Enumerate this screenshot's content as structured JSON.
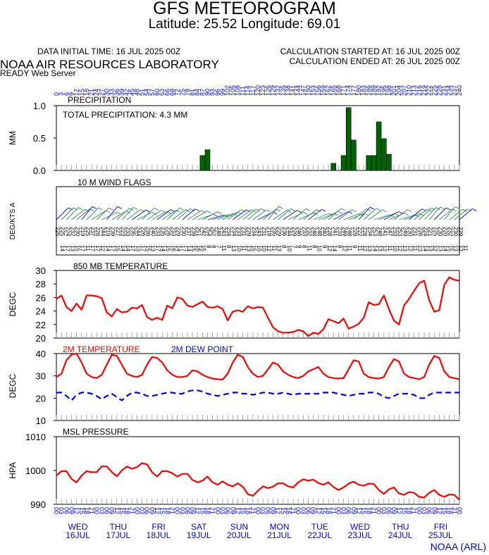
{
  "header": {
    "title": "GFS METEOROGRAM",
    "latlon": "Latitude: 25.52 Longitude:  69.01",
    "init_time": "DATA INITIAL TIME: 16 JUL 2025 00Z",
    "calc_started": "CALCULATION STARTED AT: 16 JUL 2025 00Z",
    "calc_ended": "CALCULATION ENDED AT: 26 JUL 2025 00Z",
    "lab": "NOAA AIR RESOURCES LABORATORY",
    "server": "READY Web Server",
    "credit": "NOAA (ARL)"
  },
  "colors": {
    "red": "#ff0000",
    "blue": "#0000ff",
    "green": "#006400",
    "wind": "#2e8b57"
  },
  "days": [
    {
      "name": "WED",
      "date": "16JUL"
    },
    {
      "name": "THU",
      "date": "17JUL"
    },
    {
      "name": "FRI",
      "date": "18JUL"
    },
    {
      "name": "SAT",
      "date": "19JUL"
    },
    {
      "name": "SUN",
      "date": "20JUL"
    },
    {
      "name": "MON",
      "date": "21JUL"
    },
    {
      "name": "TUE",
      "date": "22JUL"
    },
    {
      "name": "WED",
      "date": "23JUL"
    },
    {
      "name": "THU",
      "date": "24JUL"
    },
    {
      "name": "FRI",
      "date": "25JUL"
    }
  ],
  "chart_data": [
    {
      "type": "bar",
      "title": "PRECIPITATION",
      "annotation": "TOTAL PRECIPITATION:   4.3 MM",
      "ylabel": "MM",
      "ylim": [
        0,
        1.0
      ],
      "yticks": [
        "1.0",
        "0.5",
        "0.0"
      ],
      "forecast_hours_step": 3,
      "values": [
        0,
        0,
        0,
        0,
        0,
        0,
        0,
        0,
        0,
        0,
        0,
        0,
        0,
        0,
        0,
        0,
        0,
        0,
        0,
        0,
        0,
        0,
        0,
        0,
        0,
        0,
        0,
        0,
        0,
        0.23,
        0.32,
        0,
        0,
        0,
        0,
        0,
        0,
        0,
        0,
        0,
        0,
        0,
        0,
        0,
        0,
        0,
        0,
        0,
        0,
        0,
        0,
        0,
        0,
        0,
        0,
        0.11,
        0,
        0.23,
        0.97,
        0.47,
        0,
        0,
        0.23,
        0.23,
        0.75,
        0.49,
        0.25,
        0,
        0,
        0,
        0,
        0,
        0,
        0,
        0,
        0,
        0,
        0,
        0,
        0,
        0
      ]
    },
    {
      "type": "barbs",
      "title": "10 M  WIND FLAGS",
      "ylabel": "DEG/KTS  A",
      "direction_labels": [
        "225",
        "225",
        "224",
        "232",
        "230",
        "219",
        "225",
        "237",
        "226",
        "244",
        "219",
        "239",
        "227",
        "223",
        "233",
        "235",
        "244",
        "226",
        "236",
        "240",
        "233",
        "235",
        "226",
        "233",
        "229",
        "230",
        "237",
        "239",
        "251",
        "242",
        "254",
        "252",
        "248",
        "243",
        "234",
        "234",
        "233",
        "231",
        "229",
        "234",
        "243",
        "231",
        "219",
        "235",
        "229",
        "236",
        "244",
        "229",
        "246",
        "233",
        "232",
        "248",
        "248",
        "240",
        "228",
        "241",
        "233",
        "249",
        "248",
        "229",
        "222",
        "228",
        "234",
        "253",
        "248",
        "241",
        "247",
        "233",
        "253",
        "249",
        "230",
        "231",
        "226",
        "224",
        "221",
        "225",
        "230",
        "220",
        "232",
        "230",
        "229"
      ],
      "speed_labels": [
        "14",
        "17",
        "13",
        "15",
        "17",
        "11",
        "17",
        "17",
        "12",
        "14",
        "17",
        "15",
        "14",
        "14",
        "17",
        "13",
        "17",
        "15",
        "13",
        "17",
        "14",
        "15",
        "16",
        "14",
        "17",
        "14",
        "15",
        "16",
        "15",
        "8",
        "8",
        "7",
        "11",
        "8",
        "13",
        "10",
        "11",
        "13",
        "15",
        "10",
        "10",
        "12",
        "11",
        "13",
        "8",
        "10",
        "7",
        "9",
        "8",
        "11",
        "8",
        "10",
        "9",
        "12",
        "14",
        "8",
        "12",
        "11",
        "9",
        "11",
        "12",
        "13",
        "14",
        "13",
        "12",
        "11",
        "10",
        "12",
        "13",
        "12",
        "11",
        "13",
        "14",
        "13",
        "12",
        "13",
        "14",
        "15",
        "13",
        "12",
        "11"
      ]
    },
    {
      "type": "line",
      "title": "850 MB  TEMPERATURE",
      "ylabel": "DEGC",
      "ylim": [
        20,
        30
      ],
      "yticks": [
        "30",
        "28",
        "26",
        "24",
        "22",
        "20"
      ],
      "series": [
        {
          "color": "#ff0000",
          "values": [
            25.8,
            26.3,
            24.6,
            24.0,
            25.1,
            24.2,
            26.3,
            26.3,
            26.2,
            25.9,
            23.8,
            23.2,
            24.3,
            23.8,
            23.9,
            24.5,
            24.4,
            24.9,
            23.1,
            22.7,
            23.0,
            22.7,
            24.8,
            24.4,
            26.0,
            25.8,
            24.8,
            24.6,
            25.0,
            25.4,
            24.6,
            24.5,
            24.7,
            24.3,
            22.6,
            23.9,
            24.1,
            23.9,
            24.7,
            24.4,
            24.6,
            24.5,
            23.0,
            21.6,
            21.0,
            20.8,
            20.8,
            20.9,
            21.2,
            21.0,
            20.3,
            20.8,
            20.6,
            21.3,
            22.8,
            22.5,
            22.2,
            22.9,
            21.4,
            21.7,
            22.1,
            23.0,
            25.3,
            24.9,
            25.0,
            26.3,
            24.3,
            22.6,
            22.0,
            24.8,
            25.8,
            27.0,
            28.1,
            28.5,
            25.6,
            23.9,
            24.1,
            27.9,
            29.0,
            28.6,
            28.5
          ]
        }
      ]
    },
    {
      "type": "line",
      "legend": [
        "2M TEMPERATURE",
        "2M  DEW POINT"
      ],
      "ylabel": "DEGC",
      "ylim": [
        10,
        40
      ],
      "yticks": [
        "40",
        "30",
        "20",
        "10"
      ],
      "series": [
        {
          "name": "2M TEMPERATURE",
          "color": "#ff0000",
          "values": [
            29.5,
            31,
            37,
            39.5,
            40,
            36,
            31,
            29.5,
            29,
            30.5,
            35,
            39.5,
            39,
            35,
            31,
            30,
            29.5,
            30.5,
            35,
            38.5,
            38,
            36,
            32.5,
            30.5,
            29.5,
            29.5,
            30,
            32.5,
            32,
            30.5,
            29.5,
            28.8,
            28.5,
            28.3,
            31,
            36,
            39.5,
            38.5,
            34,
            31,
            29.5,
            30,
            33,
            36,
            35,
            32,
            30.5,
            29.5,
            29,
            30,
            32,
            33,
            34,
            31,
            29.5,
            29,
            28.8,
            29,
            33,
            37,
            36.5,
            31,
            29.5,
            29,
            28.8,
            29.5,
            34,
            37.5,
            36.5,
            31,
            29.5,
            29,
            28.5,
            29.5,
            35,
            39,
            38,
            32,
            29.5,
            29,
            28.5
          ]
        },
        {
          "name": "2M  DEW POINT",
          "color": "#0000ff",
          "values": [
            22.5,
            22.5,
            21,
            19,
            21.5,
            22.5,
            22.5,
            22,
            21,
            19.5,
            21,
            22,
            20.5,
            19,
            21,
            22.5,
            22.5,
            22,
            21,
            21,
            21.5,
            22,
            22.5,
            22.5,
            22,
            22,
            23,
            23.5,
            23.5,
            23,
            22,
            21.5,
            21,
            21.5,
            22,
            22.5,
            22.5,
            22,
            22,
            21.5,
            22,
            22.5,
            22.5,
            22,
            22,
            22.5,
            22,
            21.5,
            22,
            22,
            22,
            22,
            22,
            22.5,
            22.5,
            22.5,
            22,
            21.5,
            21,
            21.5,
            22,
            22,
            22.5,
            22.5,
            22,
            20.5,
            20,
            21,
            22,
            22,
            22,
            21.5,
            20,
            20,
            21.5,
            22.5,
            22.5,
            22.5,
            22.5,
            22.5,
            22.5
          ]
        }
      ]
    },
    {
      "type": "line",
      "title": "MSL PRESSURE",
      "ylabel": "HPA",
      "ylim": [
        990,
        1010
      ],
      "yticks": [
        "1010",
        "1000",
        "990"
      ],
      "series": [
        {
          "color": "#ff0000",
          "values": [
            998.5,
            999.8,
            999.8,
            997.5,
            996.5,
            998.5,
            999.8,
            999.5,
            999.5,
            1001.2,
            1001.2,
            999.5,
            998.3,
            1000,
            1001.2,
            1000.5,
            1001,
            1002.2,
            1001.8,
            999.5,
            998.2,
            999.8,
            999.8,
            999.2,
            998.2,
            999,
            999,
            997.2,
            996.5,
            997,
            998.2,
            996.5,
            995.8,
            996.8,
            995.8,
            995.3,
            996.2,
            995.2,
            993,
            992.5,
            994,
            995.3,
            994.8,
            995.2,
            996.2,
            996.2,
            995.3,
            995,
            996.5,
            997.4,
            997,
            997.3,
            996.3,
            995.8,
            996.5,
            995.1,
            994.2,
            995,
            996.1,
            996.7,
            995.8,
            995.5,
            996.1,
            996,
            994.2,
            993.1,
            994.4,
            995,
            993.2,
            992.8,
            993.6,
            993.4,
            992.2,
            992,
            993.4,
            994.2,
            992.8,
            992.2,
            992.9,
            992.8,
            991.3
          ]
        }
      ]
    }
  ]
}
